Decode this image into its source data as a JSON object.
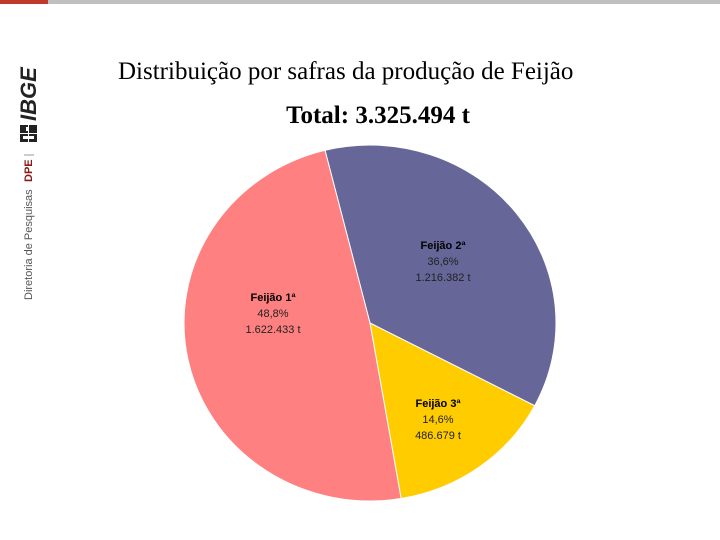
{
  "header": {
    "brand_logo_text": "IBGE",
    "brand_department": "Diretoria de Pesquisas",
    "brand_department_short": "DPE",
    "accent_color": "#c0392b"
  },
  "chart_data": {
    "type": "pie",
    "title": "Distribuição por safras da produção de Feijão",
    "subtitle": "Total: 3.325.494 t",
    "slices": [
      {
        "name": "Feijão 2ª",
        "percent_label": "36,6%",
        "value_label": "1.216.382 t",
        "value": 1216382,
        "color": "#666699"
      },
      {
        "name": "Feijão 3ª",
        "percent_label": "14,6%",
        "value_label": "486.679 t",
        "value": 486679,
        "color": "#ffcc00"
      },
      {
        "name": "Feijão 1ª",
        "percent_label": "48,8%",
        "value_label": "1.622.433 t",
        "value": 1622433,
        "color": "#ff8080"
      }
    ]
  }
}
